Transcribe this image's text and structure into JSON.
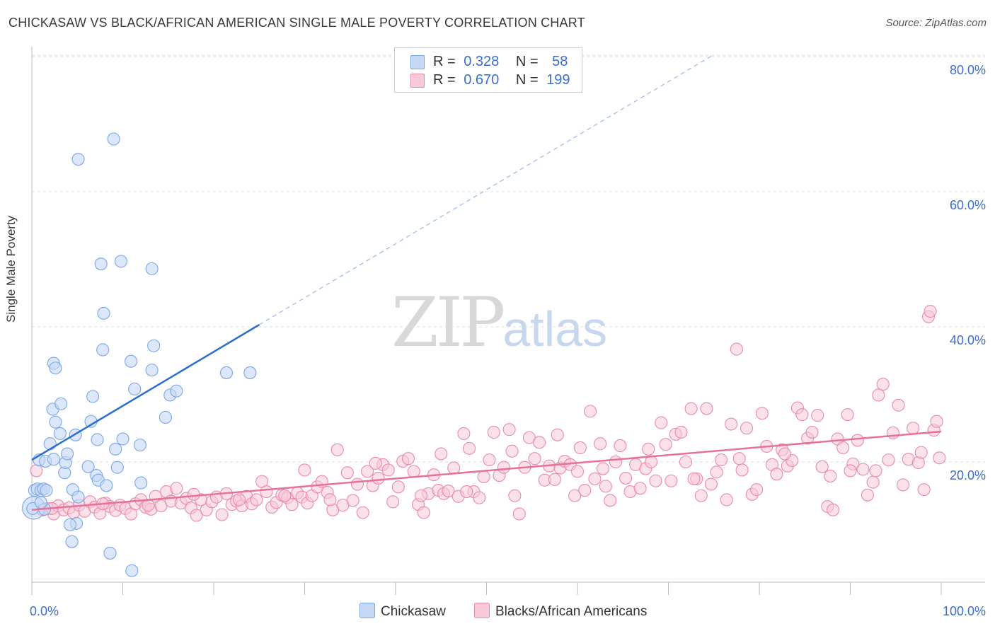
{
  "title": "CHICKASAW VS BLACK/AFRICAN AMERICAN SINGLE MALE POVERTY CORRELATION CHART",
  "source": "Source: ZipAtlas.com",
  "watermark": {
    "zip": "ZIP",
    "atlas": "atlas"
  },
  "colors": {
    "blue": "#7aa6e6",
    "blue_fill": "#c5d9f5",
    "blue_line": "#2a6fd0",
    "pink": "#e98aab",
    "pink_fill": "#f7c9d9",
    "pink_line": "#e8719a",
    "axis_text": "#3a6ecf"
  },
  "legend": {
    "rows": [
      {
        "r_label": "R =",
        "r_value": "0.328",
        "n_label": "N =",
        "n_value": "58"
      },
      {
        "r_label": "R =",
        "r_value": "0.670",
        "n_label": "N =",
        "n_value": "199"
      }
    ]
  },
  "bottom_legend": [
    "Chickasaw",
    "Blacks/African Americans"
  ],
  "chart_data": {
    "type": "scatter",
    "title": "CHICKASAW VS BLACK/AFRICAN AMERICAN SINGLE MALE POVERTY CORRELATION CHART",
    "xlabel": "",
    "ylabel": "Single Male Poverty",
    "xlim": [
      0,
      100
    ],
    "ylim": [
      0,
      82
    ],
    "x_tick_labels": [
      "0.0%",
      "100.0%"
    ],
    "y_ticks": [
      20,
      40,
      60,
      80
    ],
    "y_tick_labels": [
      "20.0%",
      "40.0%",
      "60.0%",
      "80.0%"
    ],
    "grid": true,
    "legend_position": "top-center",
    "series": [
      {
        "name": "Chickasaw",
        "r": 0.328,
        "n": 58,
        "trend": {
          "x": [
            0,
            25
          ],
          "y": [
            20.3,
            40.3
          ]
        },
        "trend_extension": {
          "x": [
            25,
            75
          ],
          "y": [
            40.3,
            80.3
          ]
        },
        "points": [
          [
            0.3,
            15.8
          ],
          [
            0.6,
            16.0
          ],
          [
            1.0,
            15.8
          ],
          [
            1.3,
            16.0
          ],
          [
            1.6,
            15.8
          ],
          [
            0.2,
            13.2
          ],
          [
            0.8,
            20.3
          ],
          [
            1.5,
            20.1
          ],
          [
            2.0,
            22.7
          ],
          [
            2.4,
            20.4
          ],
          [
            2.6,
            25.9
          ],
          [
            2.4,
            34.6
          ],
          [
            2.6,
            33.9
          ],
          [
            2.3,
            27.8
          ],
          [
            3.2,
            28.6
          ],
          [
            3.1,
            24.2
          ],
          [
            3.6,
            18.4
          ],
          [
            3.7,
            19.9
          ],
          [
            3.9,
            21.2
          ],
          [
            4.5,
            15.9
          ],
          [
            4.8,
            24.0
          ],
          [
            4.9,
            10.9
          ],
          [
            5.1,
            14.8
          ],
          [
            4.2,
            10.7
          ],
          [
            4.4,
            8.2
          ],
          [
            5.1,
            64.8
          ],
          [
            6.2,
            19.3
          ],
          [
            6.5,
            26.0
          ],
          [
            6.7,
            29.7
          ],
          [
            7.2,
            23.3
          ],
          [
            7.1,
            18.0
          ],
          [
            7.3,
            17.3
          ],
          [
            8.2,
            16.5
          ],
          [
            7.6,
            49.3
          ],
          [
            7.8,
            36.6
          ],
          [
            7.9,
            42.0
          ],
          [
            8.6,
            6.5
          ],
          [
            9.0,
            67.8
          ],
          [
            9.2,
            21.9
          ],
          [
            9.4,
            19.2
          ],
          [
            9.8,
            49.7
          ],
          [
            10.0,
            23.4
          ],
          [
            10.9,
            34.9
          ],
          [
            11.3,
            30.8
          ],
          [
            11.0,
            3.9
          ],
          [
            12.0,
            16.9
          ],
          [
            11.9,
            22.5
          ],
          [
            13.2,
            33.6
          ],
          [
            13.4,
            37.2
          ],
          [
            13.2,
            48.6
          ],
          [
            14.7,
            26.6
          ],
          [
            15.2,
            29.9
          ],
          [
            15.9,
            30.5
          ],
          [
            21.4,
            33.2
          ],
          [
            24.0,
            33.2
          ],
          [
            0.1,
            13.1
          ],
          [
            1.4,
            13.0
          ],
          [
            1.0,
            14.0
          ]
        ]
      },
      {
        "name": "Blacks/African Americans",
        "r": 0.67,
        "n": 199,
        "trend": {
          "x": [
            0,
            100
          ],
          "y": [
            12.9,
            24.5
          ]
        },
        "points": [
          [
            0.5,
            18.7
          ],
          [
            1.2,
            12.9
          ],
          [
            1.8,
            13.1
          ],
          [
            2.4,
            12.3
          ],
          [
            2.9,
            13.5
          ],
          [
            3.5,
            12.9
          ],
          [
            4.1,
            13.2
          ],
          [
            4.6,
            12.5
          ],
          [
            5.2,
            13.6
          ],
          [
            5.8,
            12.7
          ],
          [
            6.4,
            14.1
          ],
          [
            6.9,
            13.3
          ],
          [
            7.5,
            12.4
          ],
          [
            8.1,
            13.9
          ],
          [
            8.6,
            13.4
          ],
          [
            9.2,
            12.8
          ],
          [
            9.7,
            13.6
          ],
          [
            10.3,
            13.1
          ],
          [
            10.9,
            12.3
          ],
          [
            11.4,
            13.8
          ],
          [
            12.0,
            14.4
          ],
          [
            12.5,
            13.3
          ],
          [
            13.1,
            13.0
          ],
          [
            13.6,
            14.9
          ],
          [
            14.2,
            13.5
          ],
          [
            14.8,
            15.6
          ],
          [
            15.3,
            14.2
          ],
          [
            15.9,
            16.1
          ],
          [
            16.4,
            13.9
          ],
          [
            17.0,
            14.6
          ],
          [
            17.5,
            13.2
          ],
          [
            18.1,
            12.1
          ],
          [
            18.6,
            14.4
          ],
          [
            19.2,
            12.9
          ],
          [
            19.8,
            14.1
          ],
          [
            20.3,
            14.8
          ],
          [
            20.9,
            12.2
          ],
          [
            21.4,
            15.3
          ],
          [
            22.0,
            13.7
          ],
          [
            22.5,
            14.2
          ],
          [
            23.1,
            13.5
          ],
          [
            23.6,
            14.9
          ],
          [
            24.2,
            13.8
          ],
          [
            24.7,
            14.4
          ],
          [
            25.3,
            17.1
          ],
          [
            25.8,
            15.6
          ],
          [
            26.4,
            13.3
          ],
          [
            26.9,
            14.0
          ],
          [
            27.5,
            15.1
          ],
          [
            28.1,
            14.7
          ],
          [
            28.6,
            13.7
          ],
          [
            29.2,
            15.4
          ],
          [
            29.7,
            14.8
          ],
          [
            30.3,
            13.9
          ],
          [
            30.8,
            15.0
          ],
          [
            31.4,
            16.3
          ],
          [
            31.9,
            17.1
          ],
          [
            32.5,
            15.5
          ],
          [
            33.1,
            12.9
          ],
          [
            33.6,
            21.8
          ],
          [
            34.2,
            13.6
          ],
          [
            34.7,
            18.4
          ],
          [
            35.3,
            14.3
          ],
          [
            35.8,
            16.7
          ],
          [
            36.4,
            12.5
          ],
          [
            36.9,
            18.6
          ],
          [
            37.5,
            16.5
          ],
          [
            38.1,
            17.6
          ],
          [
            38.6,
            19.6
          ],
          [
            39.2,
            18.8
          ],
          [
            39.7,
            14.1
          ],
          [
            40.3,
            16.3
          ],
          [
            40.8,
            20.1
          ],
          [
            41.4,
            20.5
          ],
          [
            42.0,
            18.6
          ],
          [
            42.5,
            13.7
          ],
          [
            43.1,
            12.5
          ],
          [
            43.6,
            15.3
          ],
          [
            44.2,
            18.1
          ],
          [
            44.7,
            15.8
          ],
          [
            45.3,
            15.3
          ],
          [
            45.8,
            15.7
          ],
          [
            46.4,
            19.1
          ],
          [
            46.9,
            14.9
          ],
          [
            47.5,
            24.2
          ],
          [
            48.1,
            22.0
          ],
          [
            48.6,
            15.6
          ],
          [
            49.2,
            14.7
          ],
          [
            49.7,
            17.8
          ],
          [
            50.3,
            20.3
          ],
          [
            50.8,
            24.4
          ],
          [
            51.4,
            18.0
          ],
          [
            51.9,
            19.2
          ],
          [
            52.5,
            24.8
          ],
          [
            53.1,
            15.0
          ],
          [
            53.6,
            12.3
          ],
          [
            54.2,
            19.2
          ],
          [
            54.7,
            23.6
          ],
          [
            55.3,
            20.5
          ],
          [
            55.8,
            22.9
          ],
          [
            56.4,
            17.3
          ],
          [
            56.9,
            19.4
          ],
          [
            57.5,
            17.4
          ],
          [
            58.1,
            19.1
          ],
          [
            58.6,
            20.1
          ],
          [
            59.2,
            19.6
          ],
          [
            59.7,
            15.0
          ],
          [
            60.3,
            22.1
          ],
          [
            60.8,
            15.8
          ],
          [
            61.4,
            27.5
          ],
          [
            61.9,
            17.5
          ],
          [
            62.5,
            22.7
          ],
          [
            63.1,
            16.4
          ],
          [
            63.6,
            14.3
          ],
          [
            64.2,
            20.0
          ],
          [
            64.7,
            22.4
          ],
          [
            65.3,
            17.6
          ],
          [
            65.8,
            15.6
          ],
          [
            66.4,
            19.6
          ],
          [
            66.9,
            16.1
          ],
          [
            67.5,
            19.0
          ],
          [
            68.1,
            20.0
          ],
          [
            68.6,
            17.2
          ],
          [
            69.2,
            25.8
          ],
          [
            69.7,
            22.6
          ],
          [
            70.3,
            17.2
          ],
          [
            70.8,
            24.1
          ],
          [
            71.4,
            24.4
          ],
          [
            71.9,
            20.0
          ],
          [
            72.5,
            27.9
          ],
          [
            73.1,
            17.5
          ],
          [
            73.6,
            15.0
          ],
          [
            74.2,
            27.9
          ],
          [
            74.7,
            16.7
          ],
          [
            75.3,
            18.5
          ],
          [
            75.8,
            20.3
          ],
          [
            76.4,
            14.4
          ],
          [
            76.9,
            25.6
          ],
          [
            77.5,
            36.7
          ],
          [
            78.1,
            18.8
          ],
          [
            78.6,
            25.0
          ],
          [
            79.2,
            15.2
          ],
          [
            79.7,
            15.9
          ],
          [
            80.3,
            27.2
          ],
          [
            80.8,
            22.3
          ],
          [
            81.4,
            19.6
          ],
          [
            81.9,
            18.2
          ],
          [
            82.5,
            21.8
          ],
          [
            83.1,
            19.4
          ],
          [
            83.6,
            20.2
          ],
          [
            84.2,
            28.0
          ],
          [
            84.7,
            27.0
          ],
          [
            85.3,
            23.5
          ],
          [
            85.8,
            24.4
          ],
          [
            86.4,
            26.9
          ],
          [
            86.9,
            19.3
          ],
          [
            87.5,
            13.4
          ],
          [
            88.1,
            12.9
          ],
          [
            88.6,
            23.4
          ],
          [
            89.2,
            22.1
          ],
          [
            89.7,
            27.0
          ],
          [
            90.3,
            19.7
          ],
          [
            90.8,
            23.2
          ],
          [
            91.4,
            18.9
          ],
          [
            91.9,
            15.1
          ],
          [
            92.5,
            17.0
          ],
          [
            93.1,
            29.9
          ],
          [
            93.6,
            31.5
          ],
          [
            94.2,
            20.3
          ],
          [
            94.7,
            24.3
          ],
          [
            95.3,
            28.4
          ],
          [
            95.8,
            16.6
          ],
          [
            96.4,
            20.4
          ],
          [
            96.9,
            25.0
          ],
          [
            97.5,
            19.9
          ],
          [
            98.1,
            15.9
          ],
          [
            98.6,
            41.5
          ],
          [
            98.8,
            42.3
          ],
          [
            99.2,
            24.7
          ],
          [
            99.5,
            26.0
          ],
          [
            99.8,
            20.6
          ],
          [
            2.2,
            13.1
          ],
          [
            7.8,
            13.8
          ],
          [
            12.8,
            13.6
          ],
          [
            17.8,
            15.2
          ],
          [
            22.8,
            14.4
          ],
          [
            27.8,
            15.0
          ],
          [
            32.8,
            14.4
          ],
          [
            37.8,
            19.8
          ],
          [
            42.8,
            15.0
          ],
          [
            47.8,
            15.6
          ],
          [
            52.8,
            21.6
          ],
          [
            57.8,
            24.0
          ],
          [
            62.8,
            19.0
          ],
          [
            67.8,
            21.9
          ],
          [
            72.8,
            17.5
          ],
          [
            77.8,
            20.5
          ],
          [
            82.8,
            21.2
          ],
          [
            87.8,
            17.9
          ],
          [
            92.8,
            18.7
          ],
          [
            97.8,
            21.4
          ],
          [
            30.0,
            18.8
          ],
          [
            60.0,
            18.6
          ],
          [
            90.0,
            18.7
          ],
          [
            45.0,
            21.2
          ]
        ]
      }
    ]
  }
}
